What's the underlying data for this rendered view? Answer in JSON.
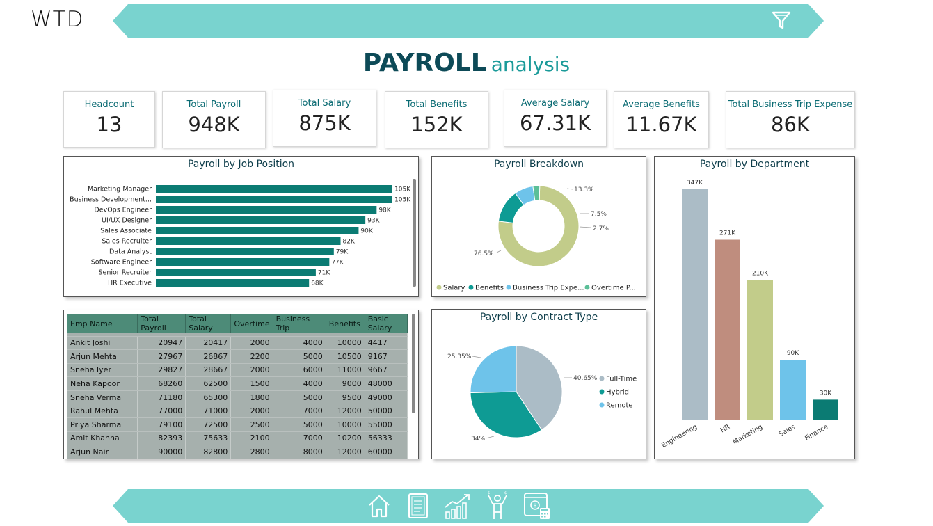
{
  "header": {
    "logo": "WTD",
    "title_main": "PAYROLL",
    "title_sub": "analysis"
  },
  "kpis": [
    {
      "label": "Headcount",
      "value": "13"
    },
    {
      "label": "Total Payroll",
      "value": "948K"
    },
    {
      "label": "Total Salary",
      "value": "875K"
    },
    {
      "label": "Total Benefits",
      "value": "152K"
    },
    {
      "label": "Average Salary",
      "value": "67.31K"
    },
    {
      "label": "Average Benefits",
      "value": "11.67K"
    },
    {
      "label": "Total Business Trip Expense",
      "value": "86K"
    }
  ],
  "panels": {
    "job": {
      "title": "Payroll by Job Position"
    },
    "breakdown": {
      "title": "Payroll Breakdown"
    },
    "department": {
      "title": "Payroll by Department"
    },
    "contract": {
      "title": "Payroll by Contract Type"
    }
  },
  "table": {
    "columns": [
      "Emp Name",
      "Total Payroll",
      "Total Salary",
      "Overtime",
      "Business Trip",
      "Benefits",
      "Basic Salary"
    ],
    "rows": [
      [
        "Ankit Joshi",
        "20947",
        "20417",
        "2000",
        "4000",
        "10000",
        "4417"
      ],
      [
        "Arjun Mehta",
        "27967",
        "26867",
        "2200",
        "5000",
        "10500",
        "9167"
      ],
      [
        "Sneha Iyer",
        "29827",
        "28667",
        "2000",
        "6000",
        "11000",
        "9667"
      ],
      [
        "Neha Kapoor",
        "68260",
        "62500",
        "1500",
        "4000",
        "9000",
        "48000"
      ],
      [
        "Sneha Verma",
        "71180",
        "65300",
        "1800",
        "5000",
        "9500",
        "49000"
      ],
      [
        "Rahul Mehta",
        "77000",
        "71000",
        "2000",
        "7000",
        "12000",
        "50000"
      ],
      [
        "Priya Sharma",
        "79100",
        "72500",
        "2500",
        "5000",
        "10000",
        "55000"
      ],
      [
        "Amit Khanna",
        "82393",
        "75633",
        "2100",
        "7000",
        "10200",
        "56333"
      ],
      [
        "Arjun Nair",
        "90000",
        "82800",
        "2800",
        "8000",
        "12000",
        "60000"
      ]
    ]
  },
  "chart_data": [
    {
      "type": "bar",
      "orientation": "horizontal",
      "title": "Payroll by Job Position",
      "categories": [
        "Marketing Manager",
        "Business Development...",
        "DevOps Engineer",
        "UI/UX Designer",
        "Sales Associate",
        "Sales Recruiter",
        "Data Analyst",
        "Software Engineer",
        "Senior Recruiter",
        "HR Executive"
      ],
      "values": [
        105,
        105,
        98,
        93,
        90,
        82,
        79,
        77,
        71,
        68
      ],
      "labels": [
        "105K",
        "105K",
        "98K",
        "93K",
        "90K",
        "82K",
        "79K",
        "77K",
        "71K",
        "68K"
      ],
      "color": "#0b7b73"
    },
    {
      "type": "pie",
      "donut": true,
      "title": "Payroll Breakdown",
      "categories": [
        "Salary",
        "Benefits",
        "Business Trip Expe...",
        "Overtime P..."
      ],
      "values": [
        76.5,
        13.3,
        7.5,
        2.7
      ],
      "labels": [
        "76.5%",
        "13.3%",
        "7.5%",
        "2.7%"
      ],
      "colors": [
        "#c2cc8a",
        "#0e9b94",
        "#6ec3ea",
        "#5bbf98"
      ]
    },
    {
      "type": "pie",
      "title": "Payroll by Contract Type",
      "categories": [
        "Full-Time",
        "Hybrid",
        "Remote"
      ],
      "values": [
        40.65,
        34,
        25.35
      ],
      "labels": [
        "40.65%",
        "34%",
        "25.35%"
      ],
      "colors": [
        "#abbcc6",
        "#0e9b94",
        "#6ec3ea"
      ]
    },
    {
      "type": "bar",
      "title": "Payroll by Department",
      "categories": [
        "Engineering",
        "HR",
        "Marketing",
        "Sales",
        "Finance"
      ],
      "values": [
        347,
        271,
        210,
        90,
        30
      ],
      "labels": [
        "347K",
        "271K",
        "210K",
        "90K",
        "30K"
      ],
      "colors": [
        "#abbcc6",
        "#bf8d7e",
        "#c2cc8a",
        "#6ec3ea",
        "#0b7b73"
      ]
    }
  ],
  "nav": [
    {
      "icon": "home-icon"
    },
    {
      "icon": "document-icon"
    },
    {
      "icon": "chart-growth-icon"
    },
    {
      "icon": "people-icon"
    },
    {
      "icon": "calculator-icon"
    }
  ]
}
